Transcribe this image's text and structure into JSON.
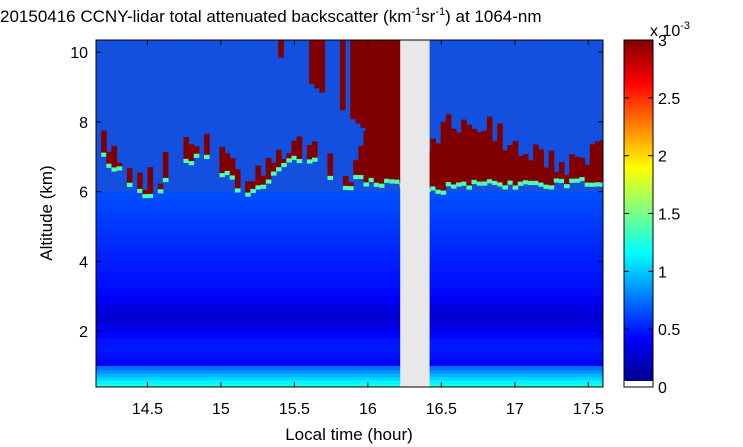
{
  "chart_data": {
    "type": "heatmap",
    "title": {
      "prefix": "20150416 CCNY-lidar total attenuated backscatter (km",
      "exp1": "-1",
      "mid": "sr",
      "exp2": "-1",
      "suffix": ") at 1064-nm"
    },
    "xlabel": "Local time (hour)",
    "ylabel": "Altitude (km)",
    "xlim": [
      14.15,
      17.6
    ],
    "ylim": [
      0.4,
      10.35
    ],
    "xticks": [
      "14.5",
      "15",
      "15.5",
      "16",
      "16.5",
      "17",
      "17.5"
    ],
    "xtick_values": [
      14.5,
      15,
      15.5,
      16,
      16.5,
      17,
      17.5
    ],
    "yticks": [
      "2",
      "4",
      "6",
      "8",
      "10"
    ],
    "ytick_values": [
      2,
      4,
      6,
      8,
      10
    ],
    "data_gap": [
      16.22,
      16.42
    ],
    "colorbar": {
      "colormap": "jet",
      "range": [
        0,
        3
      ],
      "ticks": [
        "0",
        "0.5",
        "1",
        "1.5",
        "2",
        "2.5",
        "3"
      ],
      "tick_values": [
        0,
        0.5,
        1,
        1.5,
        2,
        2.5,
        3
      ],
      "multiplier_base": "x 10",
      "multiplier_exp": "-3",
      "below_range_color": "#ffffff"
    },
    "layers": {
      "surface_aerosol": {
        "altitude_km": [
          0.4,
          1.0
        ],
        "value_range": [
          0.7,
          1.2
        ]
      },
      "boundary_layer": {
        "altitude_km": [
          1.0,
          3.0
        ],
        "value_range": [
          0.25,
          0.45
        ]
      },
      "free_troposphere": {
        "altitude_km": [
          3.0,
          6.0
        ],
        "value_range": [
          0.4,
          0.6
        ]
      },
      "cirrus_cloud": {
        "altitude_km": [
          6.0,
          10.35
        ],
        "value": 3
      }
    },
    "grid": false,
    "legend": "colorbar-right"
  }
}
